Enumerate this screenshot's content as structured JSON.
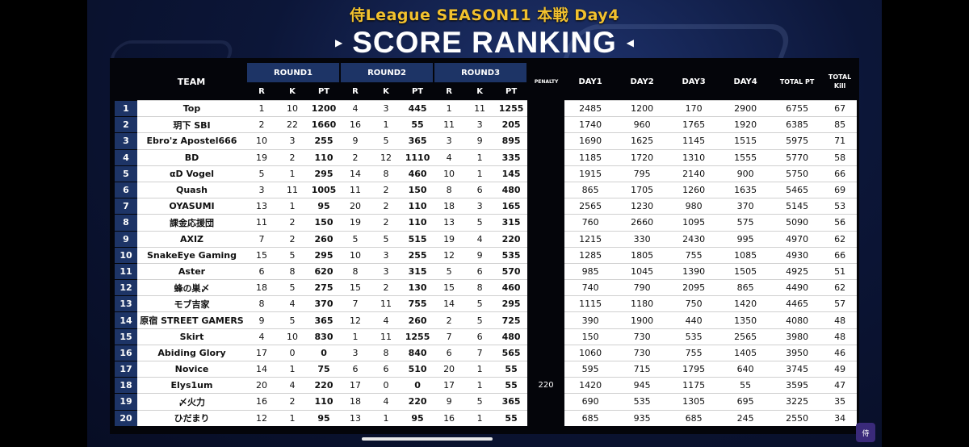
{
  "header": {
    "subtitle": "侍League SEASON11  本戦 Day4",
    "title": "SCORE RANKING"
  },
  "columns": {
    "team": "TEAM",
    "round1": "ROUND1",
    "round2": "ROUND2",
    "round3": "ROUND3",
    "penalty": "PENALTY",
    "day1": "DAY1",
    "day2": "DAY2",
    "day3": "DAY3",
    "day4": "DAY4",
    "total_pt": "TOTAL PT",
    "total_kill": "TOTAL Kill",
    "r": "R",
    "k": "K",
    "pt": "PT"
  },
  "rows": [
    {
      "rank": "1",
      "team": "Top",
      "r1": [
        "1",
        "10",
        "1200"
      ],
      "r2": [
        "4",
        "3",
        "445"
      ],
      "r3": [
        "1",
        "11",
        "1255"
      ],
      "penalty": "",
      "day1": "2485",
      "day2": "1200",
      "day3": "170",
      "day4": "2900",
      "total": "6755",
      "kill": "67"
    },
    {
      "rank": "2",
      "team": "玥下 SBI",
      "r1": [
        "2",
        "22",
        "1660"
      ],
      "r2": [
        "16",
        "1",
        "55"
      ],
      "r3": [
        "11",
        "3",
        "205"
      ],
      "penalty": "",
      "day1": "1740",
      "day2": "960",
      "day3": "1765",
      "day4": "1920",
      "total": "6385",
      "kill": "85"
    },
    {
      "rank": "3",
      "team": "Ebro'z Apostel666",
      "r1": [
        "10",
        "3",
        "255"
      ],
      "r2": [
        "9",
        "5",
        "365"
      ],
      "r3": [
        "3",
        "9",
        "895"
      ],
      "penalty": "",
      "day1": "1690",
      "day2": "1625",
      "day3": "1145",
      "day4": "1515",
      "total": "5975",
      "kill": "71"
    },
    {
      "rank": "4",
      "team": "BD",
      "r1": [
        "19",
        "2",
        "110"
      ],
      "r2": [
        "2",
        "12",
        "1110"
      ],
      "r3": [
        "4",
        "1",
        "335"
      ],
      "penalty": "",
      "day1": "1185",
      "day2": "1720",
      "day3": "1310",
      "day4": "1555",
      "total": "5770",
      "kill": "58"
    },
    {
      "rank": "5",
      "team": "αD Vogel",
      "r1": [
        "5",
        "1",
        "295"
      ],
      "r2": [
        "14",
        "8",
        "460"
      ],
      "r3": [
        "10",
        "1",
        "145"
      ],
      "penalty": "",
      "day1": "1915",
      "day2": "795",
      "day3": "2140",
      "day4": "900",
      "total": "5750",
      "kill": "66"
    },
    {
      "rank": "6",
      "team": "Quash",
      "r1": [
        "3",
        "11",
        "1005"
      ],
      "r2": [
        "11",
        "2",
        "150"
      ],
      "r3": [
        "8",
        "6",
        "480"
      ],
      "penalty": "",
      "day1": "865",
      "day2": "1705",
      "day3": "1260",
      "day4": "1635",
      "total": "5465",
      "kill": "69"
    },
    {
      "rank": "7",
      "team": "OYASUMI",
      "r1": [
        "13",
        "1",
        "95"
      ],
      "r2": [
        "20",
        "2",
        "110"
      ],
      "r3": [
        "18",
        "3",
        "165"
      ],
      "penalty": "",
      "day1": "2565",
      "day2": "1230",
      "day3": "980",
      "day4": "370",
      "total": "5145",
      "kill": "53"
    },
    {
      "rank": "8",
      "team": "課金応援団",
      "r1": [
        "11",
        "2",
        "150"
      ],
      "r2": [
        "19",
        "2",
        "110"
      ],
      "r3": [
        "13",
        "5",
        "315"
      ],
      "penalty": "",
      "day1": "760",
      "day2": "2660",
      "day3": "1095",
      "day4": "575",
      "total": "5090",
      "kill": "56"
    },
    {
      "rank": "9",
      "team": "AXIZ",
      "r1": [
        "7",
        "2",
        "260"
      ],
      "r2": [
        "5",
        "5",
        "515"
      ],
      "r3": [
        "19",
        "4",
        "220"
      ],
      "penalty": "",
      "day1": "1215",
      "day2": "330",
      "day3": "2430",
      "day4": "995",
      "total": "4970",
      "kill": "62"
    },
    {
      "rank": "10",
      "team": "SnakeEye Gaming",
      "r1": [
        "15",
        "5",
        "295"
      ],
      "r2": [
        "10",
        "3",
        "255"
      ],
      "r3": [
        "12",
        "9",
        "535"
      ],
      "penalty": "",
      "day1": "1285",
      "day2": "1805",
      "day3": "755",
      "day4": "1085",
      "total": "4930",
      "kill": "66"
    },
    {
      "rank": "11",
      "team": "Aster",
      "r1": [
        "6",
        "8",
        "620"
      ],
      "r2": [
        "8",
        "3",
        "315"
      ],
      "r3": [
        "5",
        "6",
        "570"
      ],
      "penalty": "",
      "day1": "985",
      "day2": "1045",
      "day3": "1390",
      "day4": "1505",
      "total": "4925",
      "kill": "51"
    },
    {
      "rank": "12",
      "team": "蜂の巣〆",
      "r1": [
        "18",
        "5",
        "275"
      ],
      "r2": [
        "15",
        "2",
        "130"
      ],
      "r3": [
        "15",
        "8",
        "460"
      ],
      "penalty": "",
      "day1": "740",
      "day2": "790",
      "day3": "2095",
      "day4": "865",
      "total": "4490",
      "kill": "62"
    },
    {
      "rank": "13",
      "team": "モブ吉家",
      "r1": [
        "8",
        "4",
        "370"
      ],
      "r2": [
        "7",
        "11",
        "755"
      ],
      "r3": [
        "14",
        "5",
        "295"
      ],
      "penalty": "",
      "day1": "1115",
      "day2": "1180",
      "day3": "750",
      "day4": "1420",
      "total": "4465",
      "kill": "57"
    },
    {
      "rank": "14",
      "team": "原宿 STREET GAMERS",
      "r1": [
        "9",
        "5",
        "365"
      ],
      "r2": [
        "12",
        "4",
        "260"
      ],
      "r3": [
        "2",
        "5",
        "725"
      ],
      "penalty": "",
      "day1": "390",
      "day2": "1900",
      "day3": "440",
      "day4": "1350",
      "total": "4080",
      "kill": "48"
    },
    {
      "rank": "15",
      "team": "Skirt",
      "r1": [
        "4",
        "10",
        "830"
      ],
      "r2": [
        "1",
        "11",
        "1255"
      ],
      "r3": [
        "7",
        "6",
        "480"
      ],
      "penalty": "",
      "day1": "150",
      "day2": "730",
      "day3": "535",
      "day4": "2565",
      "total": "3980",
      "kill": "48"
    },
    {
      "rank": "16",
      "team": "Abiding Glory",
      "r1": [
        "17",
        "0",
        "0"
      ],
      "r2": [
        "3",
        "8",
        "840"
      ],
      "r3": [
        "6",
        "7",
        "565"
      ],
      "penalty": "",
      "day1": "1060",
      "day2": "730",
      "day3": "755",
      "day4": "1405",
      "total": "3950",
      "kill": "46"
    },
    {
      "rank": "17",
      "team": "Novice",
      "r1": [
        "14",
        "1",
        "75"
      ],
      "r2": [
        "6",
        "6",
        "510"
      ],
      "r3": [
        "20",
        "1",
        "55"
      ],
      "penalty": "",
      "day1": "595",
      "day2": "715",
      "day3": "1795",
      "day4": "640",
      "total": "3745",
      "kill": "49"
    },
    {
      "rank": "18",
      "team": "Elys1um",
      "r1": [
        "20",
        "4",
        "220"
      ],
      "r2": [
        "17",
        "0",
        "0"
      ],
      "r3": [
        "17",
        "1",
        "55"
      ],
      "penalty": "220",
      "day1": "1420",
      "day2": "945",
      "day3": "1175",
      "day4": "55",
      "total": "3595",
      "kill": "47"
    },
    {
      "rank": "19",
      "team": "〆火力",
      "r1": [
        "16",
        "2",
        "110"
      ],
      "r2": [
        "18",
        "4",
        "220"
      ],
      "r3": [
        "9",
        "5",
        "365"
      ],
      "penalty": "",
      "day1": "690",
      "day2": "535",
      "day3": "1305",
      "day4": "695",
      "total": "3225",
      "kill": "35"
    },
    {
      "rank": "20",
      "team": "ひだまり",
      "r1": [
        "12",
        "1",
        "95"
      ],
      "r2": [
        "13",
        "1",
        "95"
      ],
      "r3": [
        "16",
        "1",
        "55"
      ],
      "penalty": "",
      "day1": "685",
      "day2": "935",
      "day3": "685",
      "day4": "245",
      "total": "2550",
      "kill": "34"
    }
  ]
}
